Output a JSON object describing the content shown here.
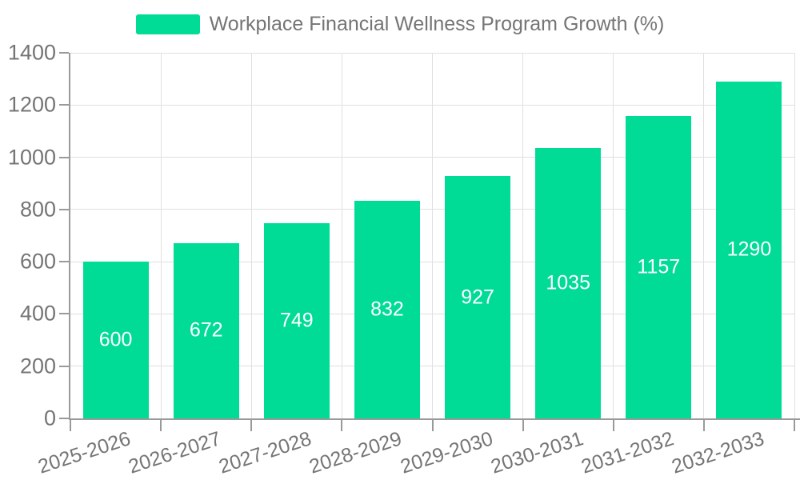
{
  "legend": {
    "label": "Workplace Financial Wellness Program Growth (%)",
    "swatch_color": "#00db95"
  },
  "chart_data": {
    "type": "bar",
    "title": "Workplace Financial Wellness Program Growth (%)",
    "categories": [
      "2025-2026",
      "2026-2027",
      "2027-2028",
      "2028-2029",
      "2029-2030",
      "2030-2031",
      "2031-2032",
      "2032-2033"
    ],
    "values": [
      600,
      672,
      749,
      832,
      927,
      1035,
      1157,
      1290
    ],
    "series_name": "Workplace Financial Wellness Program Growth (%)",
    "xlabel": "",
    "ylabel": "",
    "ylim": [
      0,
      1400
    ],
    "yticks": [
      0,
      200,
      400,
      600,
      800,
      1000,
      1200,
      1400
    ],
    "grid": true,
    "legend_position": "top-center",
    "bar_color": "#00db95",
    "value_label_color": "#ffffff",
    "axis_color": "#9a9a9a",
    "gridline_color": "#e0e0e0",
    "tick_label_color": "#757575",
    "x_label_rotation_deg": -18
  }
}
